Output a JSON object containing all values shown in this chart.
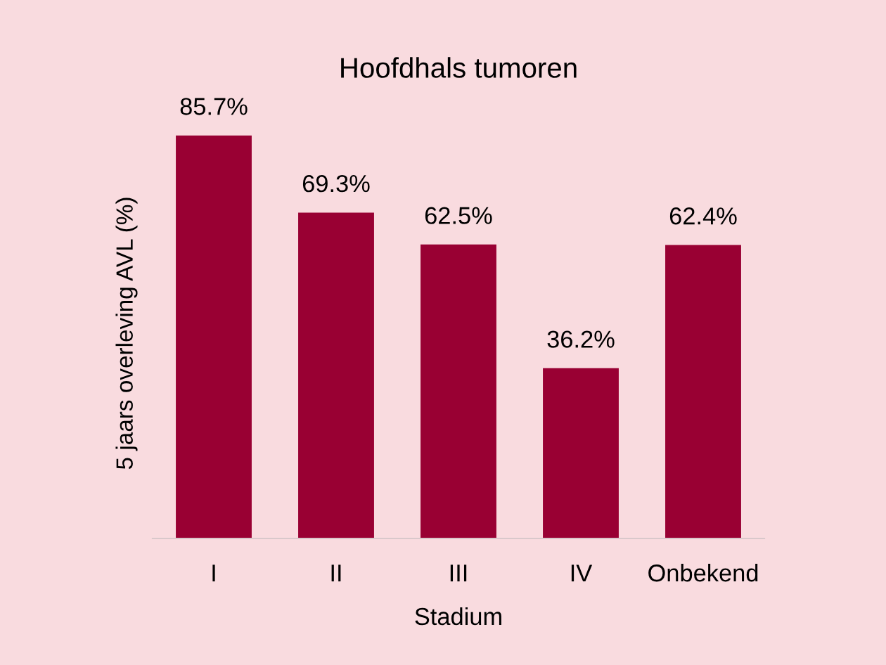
{
  "chart_data": {
    "type": "bar",
    "title": "Hoofdhals tumoren",
    "xlabel": "Stadium",
    "ylabel": "5 jaars overleving AVL (%)",
    "categories": [
      "I",
      "II",
      "III",
      "IV",
      "Onbekend"
    ],
    "values": [
      85.7,
      69.3,
      62.5,
      36.2,
      62.4
    ],
    "value_labels": [
      "85.7%",
      "69.3%",
      "62.5%",
      "36.2%",
      "62.4%"
    ],
    "color": "#990033",
    "tick_labels": "x",
    "grid": false,
    "legend": false
  }
}
